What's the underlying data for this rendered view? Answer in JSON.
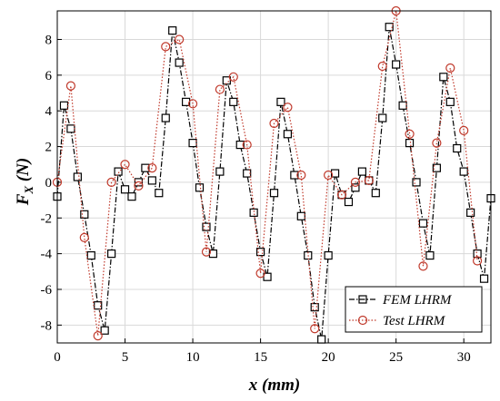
{
  "chart_data": {
    "type": "line",
    "xlabel": "x (mm)",
    "ylabel_main": "F",
    "ylabel_sub": "X",
    "ylabel_unit": " (N)",
    "xlim": [
      0,
      32
    ],
    "ylim": [
      -9,
      9.6
    ],
    "xticks": [
      0,
      5,
      10,
      15,
      20,
      25,
      30
    ],
    "yticks": [
      -8,
      -6,
      -4,
      -2,
      0,
      2,
      4,
      6,
      8
    ],
    "grid": true,
    "legend_position": "bottom-right",
    "series": [
      {
        "name": "FEM LHRM",
        "color": "#000000",
        "marker": "square",
        "line_style": "dash-dot",
        "x": [
          0,
          0.5,
          1,
          1.5,
          2,
          2.5,
          3,
          3.5,
          4,
          4.5,
          5,
          5.5,
          6,
          6.5,
          7,
          7.5,
          8,
          8.5,
          9,
          9.5,
          10,
          10.5,
          11,
          11.5,
          12,
          12.5,
          13,
          13.5,
          14,
          14.5,
          15,
          15.5,
          16,
          16.5,
          17,
          17.5,
          18,
          18.5,
          19,
          19.5,
          20,
          20.5,
          21,
          21.5,
          22,
          22.5,
          23,
          23.5,
          24,
          24.5,
          25,
          25.5,
          26,
          26.5,
          27,
          27.5,
          28,
          28.5,
          29,
          29.5,
          30,
          30.5,
          31,
          31.5,
          32
        ],
        "y": [
          -0.8,
          4.3,
          3.0,
          0.3,
          -1.8,
          -4.1,
          -6.9,
          -8.3,
          -4.0,
          0.6,
          -0.4,
          -0.8,
          0.0,
          0.8,
          0.1,
          -0.6,
          3.6,
          8.5,
          6.7,
          4.5,
          2.2,
          -0.3,
          -2.5,
          -4.0,
          0.6,
          5.7,
          4.5,
          2.1,
          0.5,
          -1.7,
          -3.9,
          -5.3,
          -0.6,
          4.5,
          2.7,
          0.4,
          -1.9,
          -4.1,
          -7.0,
          -8.8,
          -4.1,
          0.5,
          -0.7,
          -1.1,
          -0.3,
          0.6,
          0.1,
          -0.6,
          3.6,
          8.7,
          6.6,
          4.3,
          2.2,
          0.0,
          -2.3,
          -4.1,
          0.8,
          5.9,
          4.5,
          1.9,
          0.6,
          -1.7,
          -4.0,
          -5.4,
          -0.9
        ]
      },
      {
        "name": "Test LHRM",
        "color": "#c0392b",
        "marker": "circle",
        "line_style": "dotted",
        "x": [
          0,
          1,
          2,
          3,
          4,
          5,
          6,
          7,
          8,
          9,
          10,
          11,
          12,
          13,
          14,
          15,
          16,
          17,
          18,
          19,
          20,
          21,
          22,
          23,
          24,
          25,
          26,
          27,
          28,
          29,
          30,
          31
        ],
        "y": [
          0.0,
          5.4,
          -3.1,
          -8.6,
          0.0,
          1.0,
          -0.2,
          0.8,
          7.6,
          8.0,
          4.4,
          -3.9,
          5.2,
          5.9,
          2.1,
          -5.1,
          3.3,
          4.2,
          0.4,
          -8.2,
          0.4,
          -0.7,
          0.0,
          0.1,
          6.5,
          9.6,
          2.7,
          -4.7,
          2.2,
          6.4,
          2.9,
          -4.4
        ]
      }
    ]
  }
}
